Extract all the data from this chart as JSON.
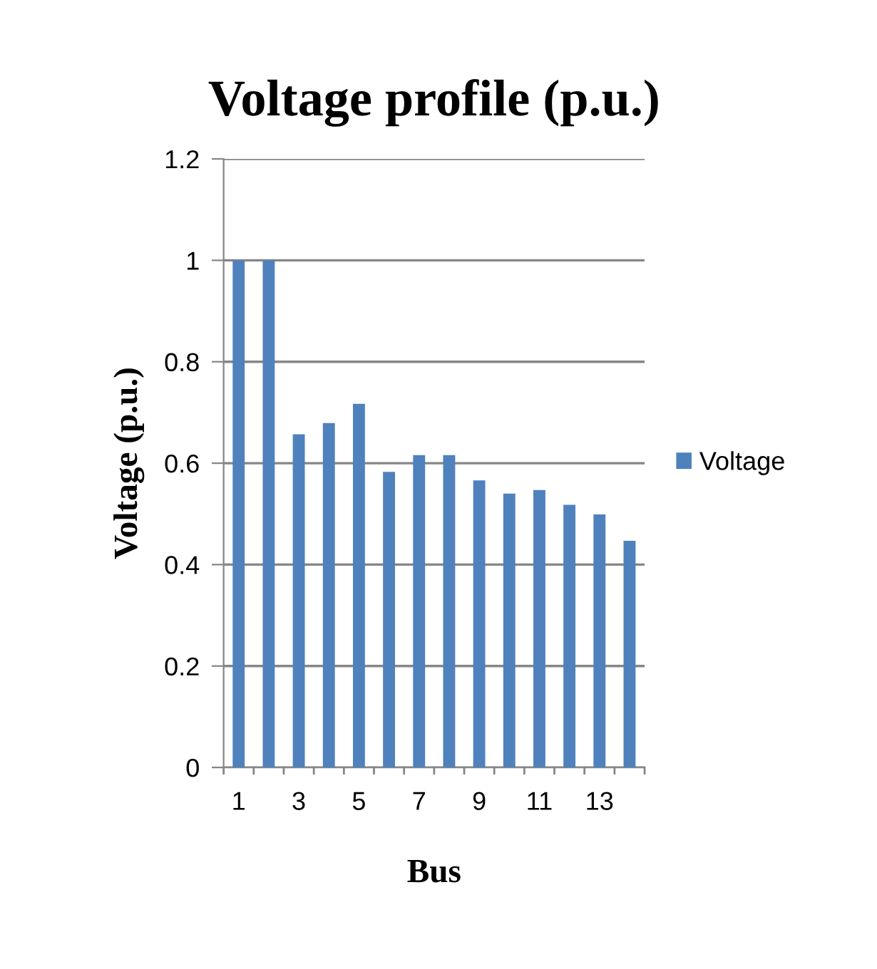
{
  "chart_data": {
    "type": "bar",
    "title": "Voltage profile (p.u.)",
    "xlabel": "Bus",
    "ylabel": "Voltage (p.u.)",
    "categories": [
      "1",
      null,
      "3",
      null,
      "5",
      null,
      "7",
      null,
      "9",
      null,
      "11",
      null,
      "13",
      null
    ],
    "series": [
      {
        "name": "Voltage",
        "color": "#4f81bd",
        "values": [
          1.0,
          1.0,
          0.657,
          0.679,
          0.717,
          0.583,
          0.616,
          0.616,
          0.566,
          0.54,
          0.547,
          0.518,
          0.499,
          0.447
        ]
      }
    ],
    "ylim": [
      0,
      1.2
    ],
    "yticks": [
      0,
      0.2,
      0.4,
      0.6,
      0.8,
      1,
      1.2
    ],
    "grid": "y",
    "legend": "right"
  }
}
